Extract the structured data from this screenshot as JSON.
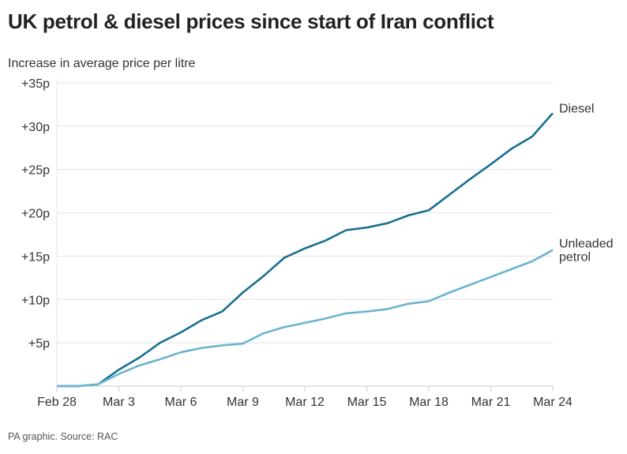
{
  "chart_data": {
    "type": "line",
    "title": "UK petrol & diesel prices since start of Iran conflict",
    "ylabel": "Increase in average price per litre",
    "source": "PA graphic. Source: RAC",
    "ylim": [
      0,
      35
    ],
    "yticks": [
      5,
      10,
      15,
      20,
      25,
      30,
      35
    ],
    "ytick_labels": [
      "+5p",
      "+10p",
      "+15p",
      "+20p",
      "+25p",
      "+30p",
      "+35p"
    ],
    "xtick_labels": [
      "Feb 28",
      "Mar 3",
      "Mar 6",
      "Mar 9",
      "Mar 12",
      "Mar 15",
      "Mar 18",
      "Mar 21",
      "Mar 24"
    ],
    "x": [
      "Feb 28",
      "Mar 1",
      "Mar 2",
      "Mar 3",
      "Mar 4",
      "Mar 5",
      "Mar 6",
      "Mar 7",
      "Mar 8",
      "Mar 9",
      "Mar 10",
      "Mar 11",
      "Mar 12",
      "Mar 13",
      "Mar 14",
      "Mar 15",
      "Mar 16",
      "Mar 17",
      "Mar 18",
      "Mar 19",
      "Mar 20",
      "Mar 21",
      "Mar 22",
      "Mar 23",
      "Mar 24"
    ],
    "grid": true,
    "series": [
      {
        "name": "Diesel",
        "color": "#1a6f91",
        "values": [
          0,
          0,
          0.2,
          1.9,
          3.3,
          5.0,
          6.2,
          7.6,
          8.6,
          10.8,
          12.7,
          14.8,
          15.9,
          16.8,
          18.0,
          18.3,
          18.8,
          19.7,
          20.3,
          22.1,
          23.9,
          25.6,
          27.4,
          28.8,
          31.5
        ]
      },
      {
        "name": "Unleaded petrol",
        "label_lines": [
          "Unleaded",
          "petrol"
        ],
        "color": "#6bb4cf",
        "values": [
          0,
          0,
          0.2,
          1.4,
          2.4,
          3.1,
          3.9,
          4.4,
          4.7,
          4.9,
          6.1,
          6.8,
          7.3,
          7.8,
          8.4,
          8.6,
          8.9,
          9.5,
          9.8,
          10.8,
          11.7,
          12.6,
          13.5,
          14.4,
          15.7
        ]
      }
    ]
  }
}
